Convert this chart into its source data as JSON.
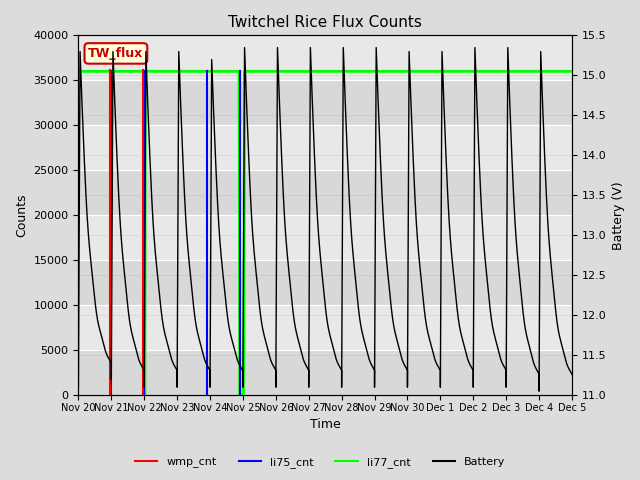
{
  "title": "Twitchel Rice Flux Counts",
  "xlabel": "Time",
  "ylabel_left": "Counts",
  "ylabel_right": "Battery (V)",
  "ylim_left": [
    0,
    40000
  ],
  "ylim_right": [
    11.0,
    15.5
  ],
  "bg_color": "#dcdcdc",
  "plot_bg_light": "#dcdcdc",
  "plot_bg_dark": "#c8c8c8",
  "annotation_text": "TW_flux",
  "annotation_facecolor": "lightyellow",
  "annotation_edgecolor": "#cc0000",
  "annotation_textcolor": "#cc0000",
  "xtick_labels": [
    "Nov 20",
    "Nov 21",
    "Nov 22",
    "Nov 23",
    "Nov 24",
    "Nov 25",
    "Nov 26",
    "Nov 27",
    "Nov 28",
    "Nov 29",
    "Nov 30",
    "Dec 1",
    "Dec 2",
    "Dec 3",
    "Dec 4",
    "Dec 5"
  ],
  "li77_level": 36000,
  "li77_color": "#00ff00",
  "li75_color": "#0000ff",
  "wmp_color": "#ff0000",
  "battery_color": "#000000",
  "legend_entries": [
    "wmp_cnt",
    "li75_cnt",
    "li77_cnt",
    "Battery"
  ],
  "batt_ylim": [
    11.0,
    15.5
  ],
  "counts_ylim": [
    0,
    40000
  ]
}
